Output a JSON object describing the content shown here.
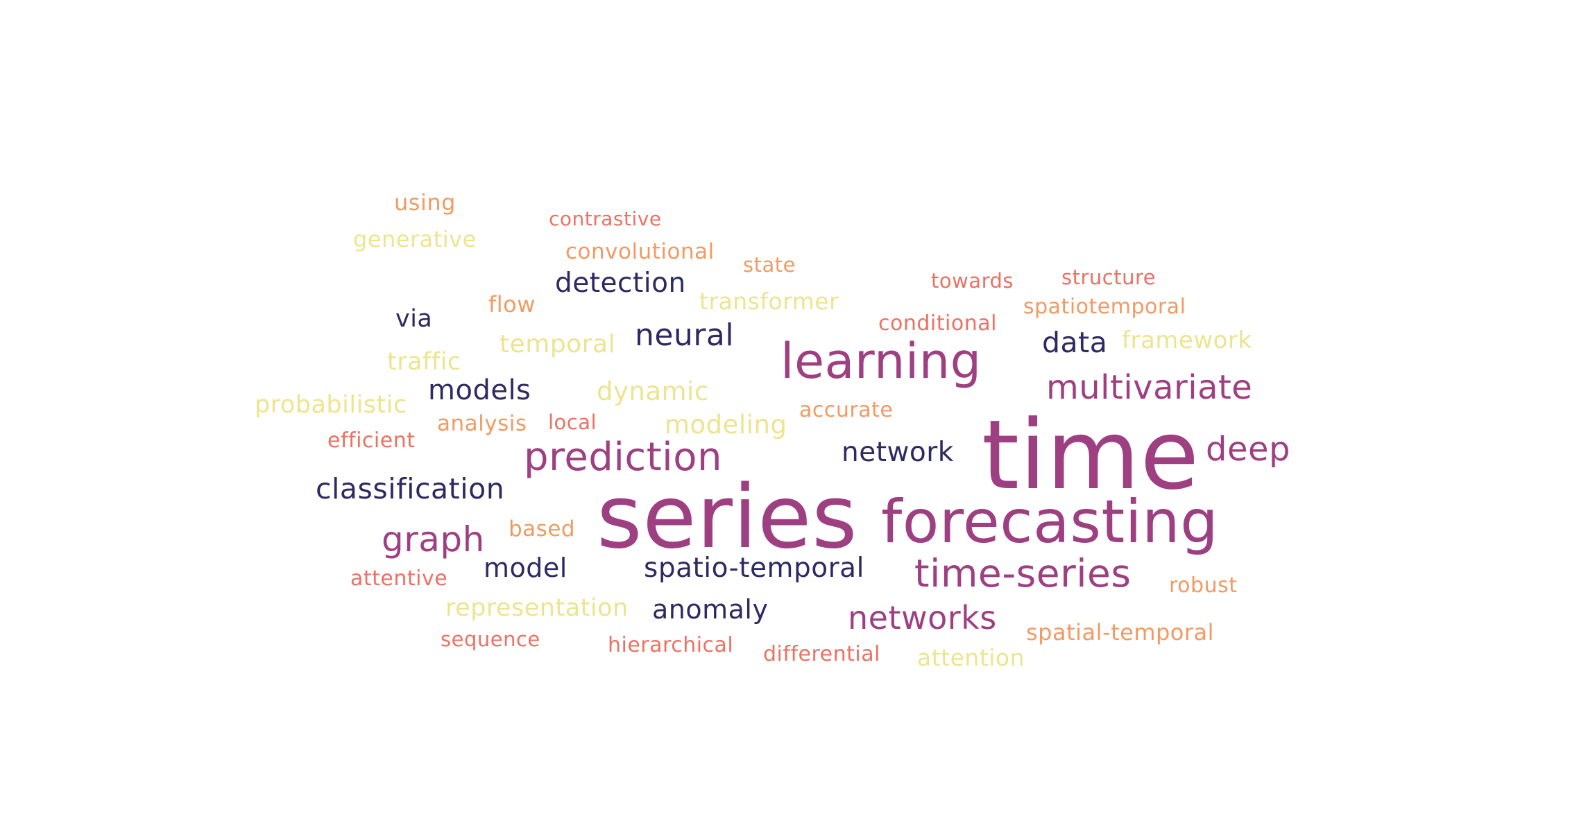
{
  "word_cloud": {
    "palette": {
      "dark": "#2d2a63",
      "magenta": "#9e3f82",
      "salmon": "#ec7163",
      "orange": "#f29a62",
      "yellow": "#ede48f"
    },
    "words": [
      {
        "text": "time",
        "tone": "magenta"
      },
      {
        "text": "series",
        "tone": "magenta"
      },
      {
        "text": "forecasting",
        "tone": "magenta"
      },
      {
        "text": "learning",
        "tone": "magenta"
      },
      {
        "text": "prediction",
        "tone": "magenta"
      },
      {
        "text": "time-series",
        "tone": "magenta"
      },
      {
        "text": "multivariate",
        "tone": "magenta"
      },
      {
        "text": "deep",
        "tone": "magenta"
      },
      {
        "text": "graph",
        "tone": "magenta"
      },
      {
        "text": "networks",
        "tone": "magenta"
      },
      {
        "text": "neural",
        "tone": "dark"
      },
      {
        "text": "classification",
        "tone": "dark"
      },
      {
        "text": "detection",
        "tone": "dark"
      },
      {
        "text": "models",
        "tone": "dark"
      },
      {
        "text": "network",
        "tone": "dark"
      },
      {
        "text": "data",
        "tone": "dark"
      },
      {
        "text": "spatio-temporal",
        "tone": "dark"
      },
      {
        "text": "model",
        "tone": "dark"
      },
      {
        "text": "anomaly",
        "tone": "dark"
      },
      {
        "text": "via",
        "tone": "dark"
      },
      {
        "text": "using",
        "tone": "orange"
      },
      {
        "text": "contrastive",
        "tone": "salmon"
      },
      {
        "text": "generative",
        "tone": "yellow"
      },
      {
        "text": "convolutional",
        "tone": "orange"
      },
      {
        "text": "state",
        "tone": "orange"
      },
      {
        "text": "towards",
        "tone": "salmon"
      },
      {
        "text": "structure",
        "tone": "salmon"
      },
      {
        "text": "flow",
        "tone": "orange"
      },
      {
        "text": "transformer",
        "tone": "yellow"
      },
      {
        "text": "spatiotemporal",
        "tone": "orange"
      },
      {
        "text": "conditional",
        "tone": "salmon"
      },
      {
        "text": "temporal",
        "tone": "yellow"
      },
      {
        "text": "framework",
        "tone": "yellow"
      },
      {
        "text": "traffic",
        "tone": "yellow"
      },
      {
        "text": "dynamic",
        "tone": "yellow"
      },
      {
        "text": "probabilistic",
        "tone": "yellow"
      },
      {
        "text": "accurate",
        "tone": "orange"
      },
      {
        "text": "analysis",
        "tone": "orange"
      },
      {
        "text": "local",
        "tone": "salmon"
      },
      {
        "text": "modeling",
        "tone": "yellow"
      },
      {
        "text": "efficient",
        "tone": "salmon"
      },
      {
        "text": "based",
        "tone": "orange"
      },
      {
        "text": "attentive",
        "tone": "salmon"
      },
      {
        "text": "robust",
        "tone": "orange"
      },
      {
        "text": "representation",
        "tone": "yellow"
      },
      {
        "text": "sequence",
        "tone": "salmon"
      },
      {
        "text": "hierarchical",
        "tone": "salmon"
      },
      {
        "text": "differential",
        "tone": "salmon"
      },
      {
        "text": "spatial-temporal",
        "tone": "orange"
      },
      {
        "text": "attention",
        "tone": "yellow"
      }
    ]
  }
}
